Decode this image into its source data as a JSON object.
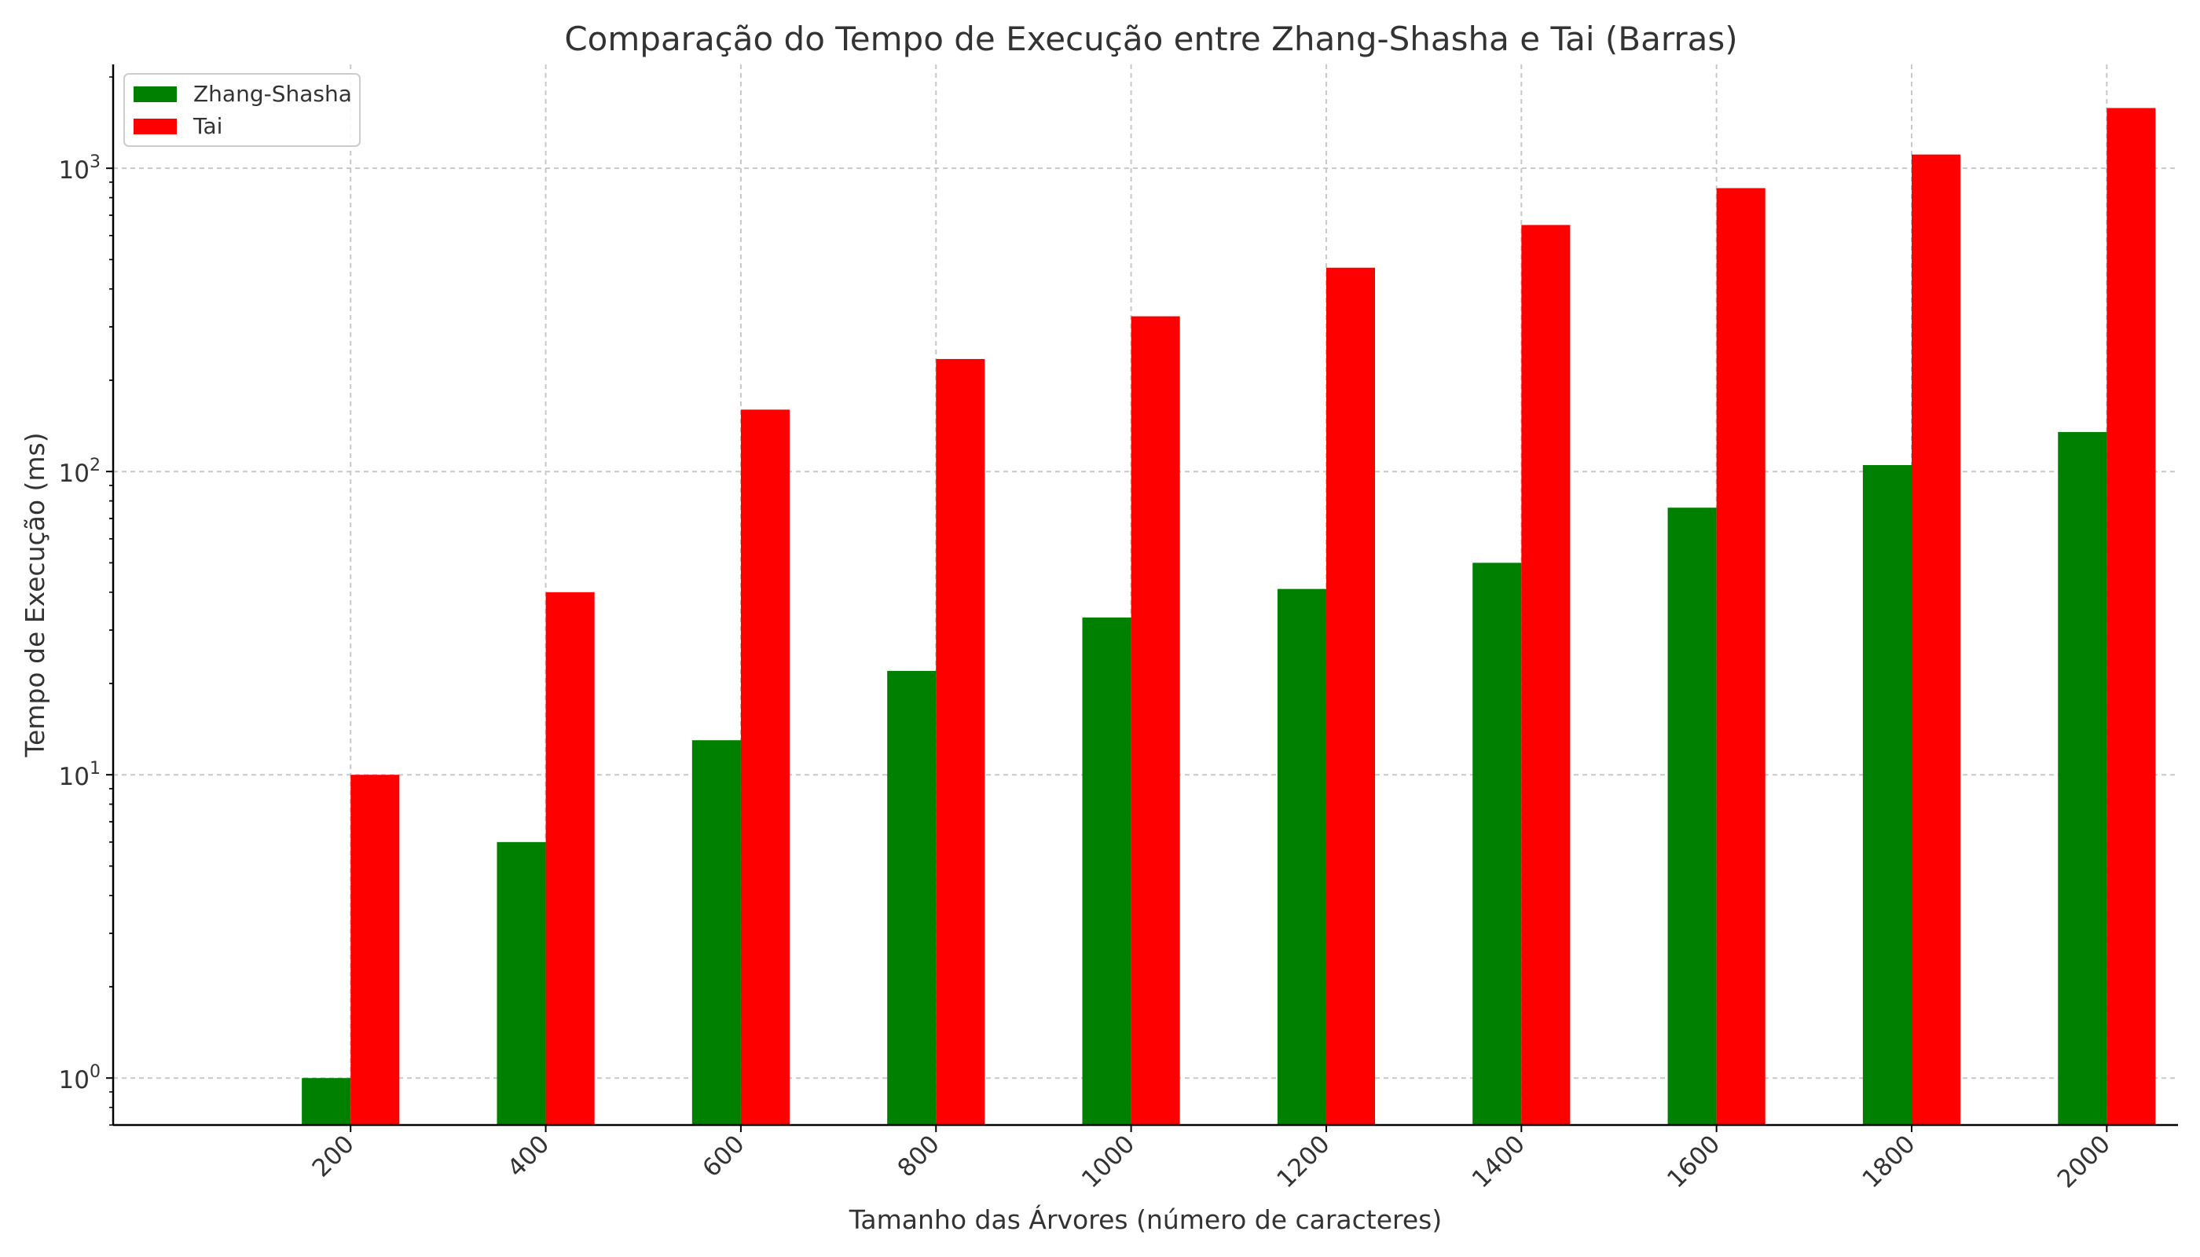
{
  "chart_data": {
    "type": "bar",
    "title": "Comparação do Tempo de Execução entre Zhang-Shasha e Tai (Barras)",
    "xlabel": "Tamanho das Árvores (número de caracteres)",
    "ylabel": "Tempo de Execução (ms)",
    "yscale": "log",
    "ylim": [
      0.7,
      2200
    ],
    "yticks": [
      {
        "value": 1,
        "base": "10",
        "exp": "0"
      },
      {
        "value": 10,
        "base": "10",
        "exp": "1"
      },
      {
        "value": 100,
        "base": "10",
        "exp": "2"
      },
      {
        "value": 1000,
        "base": "10",
        "exp": "3"
      }
    ],
    "categories": [
      "200",
      "400",
      "600",
      "800",
      "1000",
      "1200",
      "1400",
      "1600",
      "1800",
      "2000"
    ],
    "series": [
      {
        "name": "Zhang-Shasha",
        "color": "#008000",
        "values": [
          1,
          6,
          13,
          22,
          33,
          41,
          50,
          76,
          105,
          135
        ]
      },
      {
        "name": "Tai",
        "color": "#ff0000",
        "values": [
          10,
          40,
          160,
          235,
          325,
          470,
          650,
          860,
          1110,
          1580
        ]
      }
    ],
    "grid": true,
    "legend_position": "top-left"
  }
}
